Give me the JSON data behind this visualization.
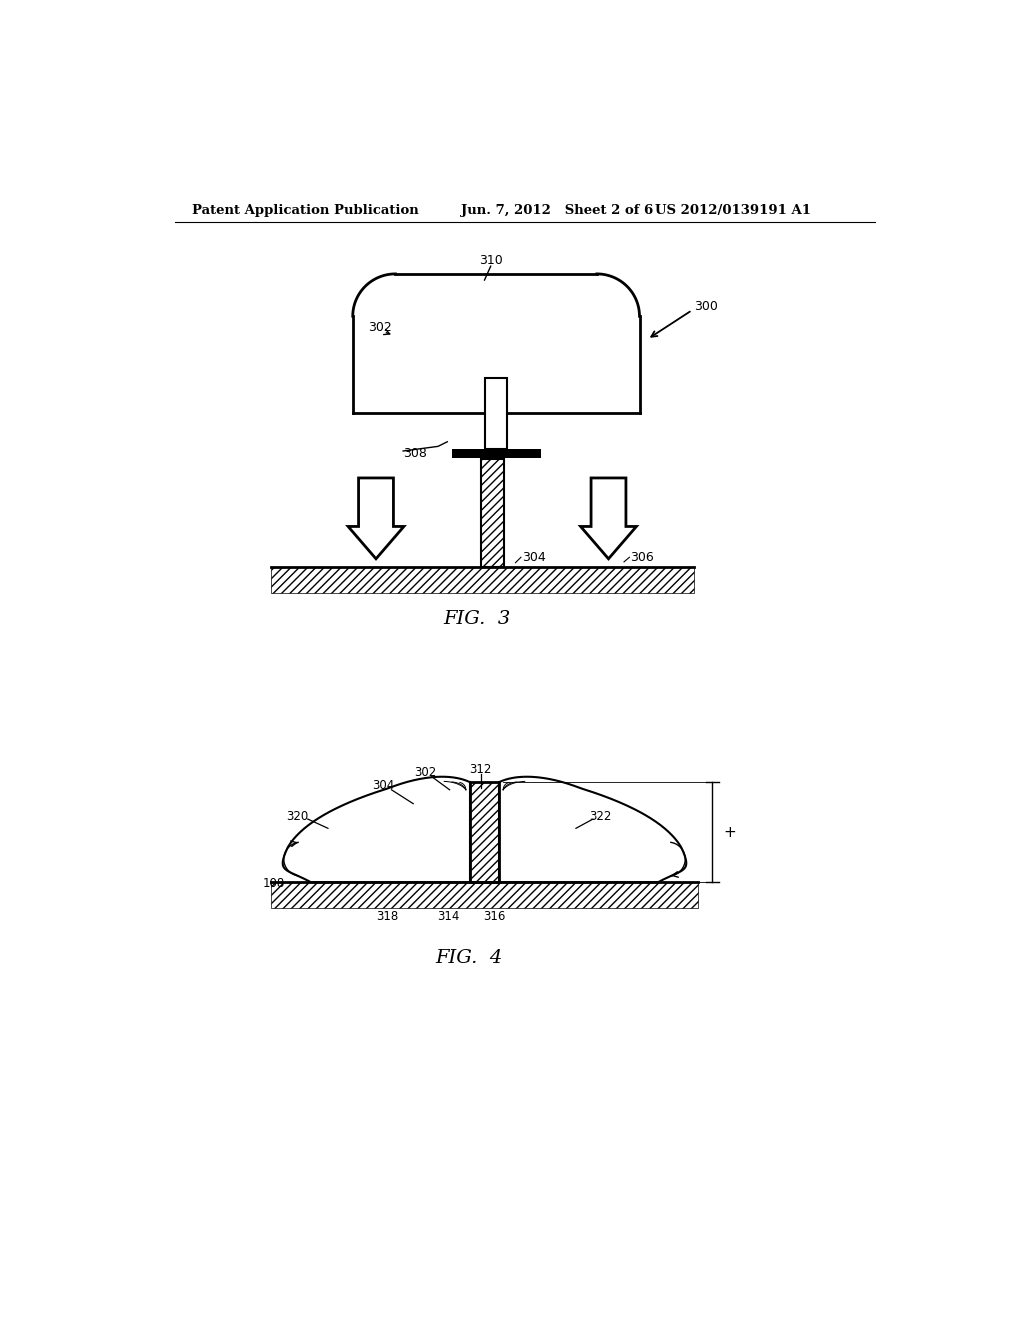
{
  "bg_color": "#ffffff",
  "line_color": "#000000",
  "header_text_left": "Patent Application Publication",
  "header_text_mid": "Jun. 7, 2012   Sheet 2 of 6",
  "header_text_right": "US 2012/0139191 A1",
  "fig3_label": "FIG.  3",
  "fig4_label": "FIG.  4"
}
